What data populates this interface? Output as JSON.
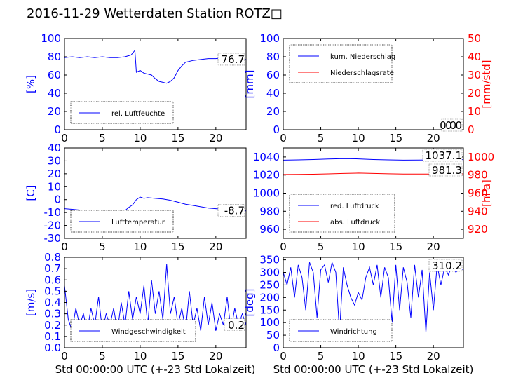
{
  "figure": {
    "title": "2016-11-29 Wetterdaten Station ROTZ□"
  },
  "chart_data": [
    {
      "id": "humidity",
      "type": "line",
      "xlim": [
        0,
        24
      ],
      "ylim": [
        0,
        100
      ],
      "xticks": [
        0,
        5,
        10,
        15,
        20
      ],
      "yticks": [
        0,
        20,
        40,
        60,
        80,
        100
      ],
      "ylabel": "[%]",
      "xlabel": "",
      "series": [
        {
          "name": "rel. Luftfeuchte",
          "color": "#0000ff",
          "x": [
            0,
            1,
            2,
            3,
            4,
            5,
            6,
            7,
            8,
            8.8,
            9.3,
            9.5,
            10,
            10.5,
            11,
            11.5,
            12,
            12.5,
            13,
            13.5,
            14,
            14.5,
            15,
            15.5,
            16,
            17,
            18,
            19,
            20,
            21,
            22,
            23,
            24
          ],
          "y": [
            79,
            80,
            79,
            80,
            79,
            80,
            79,
            79,
            80,
            82,
            87,
            63,
            65,
            62,
            61,
            60,
            56,
            53,
            52,
            51,
            53,
            57,
            65,
            70,
            74,
            76,
            77,
            78,
            78,
            79,
            78,
            77,
            77
          ]
        }
      ],
      "badge": "76.7",
      "legend": "lower-left"
    },
    {
      "id": "precip",
      "type": "line",
      "xlim": [
        0,
        24
      ],
      "ylim": [
        0,
        100
      ],
      "ylim_right": [
        0,
        50
      ],
      "xticks": [
        0,
        5,
        10,
        15,
        20
      ],
      "yticks": [
        0,
        20,
        40,
        60,
        80,
        100
      ],
      "yticks_right": [
        0,
        10,
        20,
        30,
        40,
        50
      ],
      "ylabel": "[mm]",
      "ylabel_right": "[mm/std]",
      "xlabel": "",
      "series": [
        {
          "name": "kum. Niederschlag",
          "color": "#0000ff",
          "axis": "left",
          "x": [
            0,
            24
          ],
          "y": [
            0,
            0
          ]
        },
        {
          "name": "Niederschlagsrate",
          "color": "#ff0000",
          "axis": "right",
          "x": [
            0,
            24
          ],
          "y": [
            0,
            0
          ]
        }
      ],
      "badge": "0.0",
      "badge2": "0.0",
      "legend": "upper-left"
    },
    {
      "id": "temperature",
      "type": "line",
      "xlim": [
        0,
        24
      ],
      "ylim": [
        -30,
        40
      ],
      "xticks": [
        0,
        5,
        10,
        15,
        20
      ],
      "yticks": [
        -30,
        -20,
        -10,
        0,
        10,
        20,
        30,
        40
      ],
      "ylabel": "[C]",
      "xlabel": "",
      "series": [
        {
          "name": "Lufttemperatur",
          "color": "#0000ff",
          "x": [
            0,
            1,
            2,
            3,
            4,
            5,
            6,
            7,
            8,
            8.5,
            9,
            9.5,
            10,
            10.5,
            11,
            12,
            13,
            14,
            15,
            16,
            17,
            18,
            19,
            20,
            21,
            22,
            23,
            24
          ],
          "y": [
            -7,
            -7.5,
            -8,
            -8.5,
            -8.5,
            -9,
            -9,
            -9,
            -8.5,
            -6,
            -4,
            0,
            2,
            1,
            1.5,
            1,
            0.5,
            -0.5,
            -2,
            -3.5,
            -4.5,
            -5.5,
            -6.5,
            -7,
            -7.5,
            -8,
            -8.5,
            -8.7
          ]
        }
      ],
      "badge": "-8.7",
      "legend": "lower-left"
    },
    {
      "id": "pressure",
      "type": "line",
      "xlim": [
        0,
        24
      ],
      "ylim": [
        950,
        1050
      ],
      "ylim_right": [
        910,
        1010
      ],
      "xticks": [
        0,
        5,
        10,
        15,
        20
      ],
      "yticks": [
        960,
        980,
        1000,
        1020,
        1040
      ],
      "yticks_right": [
        920,
        940,
        960,
        980,
        1000
      ],
      "ylabel": "",
      "ylabel_right": "[hPa]",
      "xlabel": "",
      "series": [
        {
          "name": "red. Luftdruck",
          "color": "#0000ff",
          "axis": "left",
          "x": [
            0,
            2,
            4,
            6,
            8,
            10,
            12,
            14,
            16,
            18,
            20,
            22,
            24
          ],
          "y": [
            1036.5,
            1036.8,
            1037.2,
            1037.8,
            1038.2,
            1037.9,
            1037.2,
            1036.8,
            1036.5,
            1036.6,
            1036.8,
            1037.0,
            1037.1
          ]
        },
        {
          "name": "abs. Luftdruck",
          "color": "#ff0000",
          "axis": "right",
          "x": [
            0,
            2,
            4,
            6,
            8,
            10,
            12,
            14,
            16,
            18,
            20,
            22,
            24
          ],
          "y": [
            980.6,
            980.7,
            980.9,
            981.3,
            981.8,
            982.2,
            981.8,
            981.4,
            981.1,
            981.1,
            981.2,
            981.3,
            981.3
          ]
        }
      ],
      "badge": "1037.1",
      "badge2": "981.3",
      "legend": "lower-left"
    },
    {
      "id": "windspeed",
      "type": "line",
      "xlim": [
        0,
        24
      ],
      "ylim": [
        0,
        0.8
      ],
      "xticks": [
        0,
        5,
        10,
        15,
        20
      ],
      "yticks": [
        0.0,
        0.1,
        0.2,
        0.3,
        0.4,
        0.5,
        0.6,
        0.7,
        0.8
      ],
      "ylabel": "[m/s]",
      "xlabel": "Std 00:00:00 UTC (+-23 Std Lokalzeit)",
      "series": [
        {
          "name": "Windgeschwindigkeit",
          "color": "#0000ff",
          "x": [
            0,
            0.5,
            1,
            1.5,
            2,
            2.5,
            3,
            3.5,
            4,
            4.5,
            5,
            5.5,
            6,
            6.5,
            7,
            7.5,
            8,
            8.5,
            9,
            9.5,
            10,
            10.5,
            11,
            11.5,
            12,
            12.5,
            13,
            13.5,
            14,
            14.5,
            15,
            15.5,
            16,
            16.5,
            17,
            17.5,
            18,
            18.5,
            19,
            19.5,
            20,
            20.5,
            21,
            21.5,
            22,
            22.5,
            23,
            23.5,
            24
          ],
          "y": [
            0.55,
            0.25,
            0.15,
            0.35,
            0.2,
            0.3,
            0.15,
            0.35,
            0.2,
            0.45,
            0.15,
            0.3,
            0.2,
            0.35,
            0.15,
            0.4,
            0.2,
            0.5,
            0.25,
            0.45,
            0.3,
            0.55,
            0.2,
            0.6,
            0.3,
            0.5,
            0.25,
            0.74,
            0.3,
            0.45,
            0.2,
            0.35,
            0.15,
            0.5,
            0.2,
            0.35,
            0.15,
            0.45,
            0.2,
            0.4,
            0.15,
            0.3,
            0.2,
            0.45,
            0.15,
            0.35,
            0.2,
            0.3,
            0.2
          ]
        }
      ],
      "badge": "0.2",
      "legend": "lower-left"
    },
    {
      "id": "winddir",
      "type": "line",
      "xlim": [
        0,
        24
      ],
      "ylim": [
        0,
        360
      ],
      "xticks": [
        0,
        5,
        10,
        15,
        20
      ],
      "yticks": [
        0,
        50,
        100,
        150,
        200,
        250,
        300,
        350
      ],
      "ylabel": "[deg]",
      "xlabel": "Std 00:00:00 UTC (+-23 Std Lokalzeit)",
      "series": [
        {
          "name": "Windrichtung",
          "color": "#0000ff",
          "x": [
            0,
            0.5,
            1,
            1.5,
            2,
            2.5,
            3,
            3.5,
            4,
            4.5,
            5,
            5.5,
            6,
            6.5,
            7,
            7.5,
            8,
            8.5,
            9,
            9.5,
            10,
            10.5,
            11,
            11.5,
            12,
            12.5,
            13,
            13.5,
            14,
            14.5,
            15,
            15.5,
            16,
            16.5,
            17,
            17.5,
            18,
            18.5,
            19,
            19.5,
            20,
            20.5,
            21,
            21.5,
            22,
            22.5,
            23,
            23.5,
            24
          ],
          "y": [
            300,
            250,
            320,
            200,
            330,
            280,
            150,
            340,
            300,
            120,
            310,
            330,
            260,
            340,
            300,
            60,
            320,
            250,
            200,
            170,
            220,
            190,
            280,
            320,
            250,
            330,
            200,
            320,
            280,
            100,
            330,
            150,
            320,
            260,
            120,
            330,
            200,
            310,
            60,
            300,
            150,
            330,
            250,
            320,
            290,
            330,
            300,
            320,
            310
          ]
        }
      ],
      "badge": "310.2",
      "legend": "lower-left"
    }
  ]
}
